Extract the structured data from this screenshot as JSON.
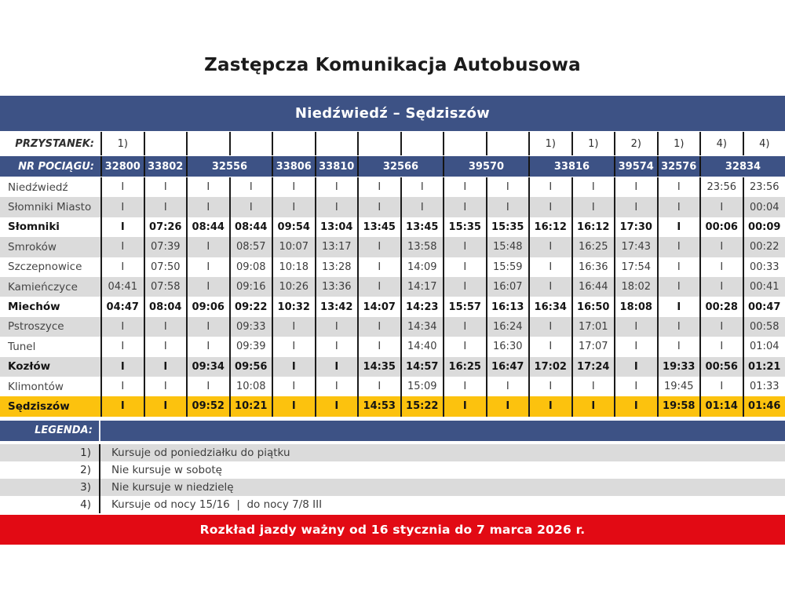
{
  "title": "Zastępcza Komunikacja Autobusowa",
  "route": "Niedźwiedź – Sędziszów",
  "colors": {
    "header_blue": "#3D5285",
    "highlight_yellow": "#FCC20E",
    "zebra_gray": "#DBDBDB",
    "footer_red": "#E20A14"
  },
  "table": {
    "stop_header_label": "PRZYSTANEK:",
    "train_header_label": "NR POCIĄGU:",
    "column_annotations": [
      "1)",
      "",
      "",
      "",
      "",
      "",
      "",
      "",
      "",
      "",
      "1)",
      "1)",
      "2)",
      "1)",
      "4)",
      "4)"
    ],
    "trains": [
      {
        "number": "32800",
        "span": 1
      },
      {
        "number": "33802",
        "span": 1
      },
      {
        "number": "32556",
        "span": 2
      },
      {
        "number": "33806",
        "span": 1
      },
      {
        "number": "33810",
        "span": 1
      },
      {
        "number": "32566",
        "span": 2
      },
      {
        "number": "39570",
        "span": 2
      },
      {
        "number": "33816",
        "span": 2
      },
      {
        "number": "39574",
        "span": 1
      },
      {
        "number": "32576",
        "span": 1
      },
      {
        "number": "32834",
        "span": 2
      }
    ],
    "rows": [
      {
        "station": "Niedźwiedź",
        "bold": false,
        "highlight": false,
        "times": [
          "I",
          "I",
          "I",
          "I",
          "I",
          "I",
          "I",
          "I",
          "I",
          "I",
          "I",
          "I",
          "I",
          "I",
          "23:56",
          "23:56"
        ]
      },
      {
        "station": "Słomniki Miasto",
        "bold": false,
        "highlight": false,
        "times": [
          "I",
          "I",
          "I",
          "I",
          "I",
          "I",
          "I",
          "I",
          "I",
          "I",
          "I",
          "I",
          "I",
          "I",
          "I",
          "00:04"
        ]
      },
      {
        "station": "Słomniki",
        "bold": true,
        "highlight": false,
        "times": [
          "I",
          "07:26",
          "08:44",
          "08:44",
          "09:54",
          "13:04",
          "13:45",
          "13:45",
          "15:35",
          "15:35",
          "16:12",
          "16:12",
          "17:30",
          "I",
          "00:06",
          "00:09"
        ]
      },
      {
        "station": "Smroków",
        "bold": false,
        "highlight": false,
        "times": [
          "I",
          "07:39",
          "I",
          "08:57",
          "10:07",
          "13:17",
          "I",
          "13:58",
          "I",
          "15:48",
          "I",
          "16:25",
          "17:43",
          "I",
          "I",
          "00:22"
        ]
      },
      {
        "station": "Szczepnowice",
        "bold": false,
        "highlight": false,
        "times": [
          "I",
          "07:50",
          "I",
          "09:08",
          "10:18",
          "13:28",
          "I",
          "14:09",
          "I",
          "15:59",
          "I",
          "16:36",
          "17:54",
          "I",
          "I",
          "00:33"
        ]
      },
      {
        "station": "Kamieńczyce",
        "bold": false,
        "highlight": false,
        "times": [
          "04:41",
          "07:58",
          "I",
          "09:16",
          "10:26",
          "13:36",
          "I",
          "14:17",
          "I",
          "16:07",
          "I",
          "16:44",
          "18:02",
          "I",
          "I",
          "00:41"
        ]
      },
      {
        "station": "Miechów",
        "bold": true,
        "highlight": false,
        "times": [
          "04:47",
          "08:04",
          "09:06",
          "09:22",
          "10:32",
          "13:42",
          "14:07",
          "14:23",
          "15:57",
          "16:13",
          "16:34",
          "16:50",
          "18:08",
          "I",
          "00:28",
          "00:47"
        ]
      },
      {
        "station": "Pstroszyce",
        "bold": false,
        "highlight": false,
        "times": [
          "I",
          "I",
          "I",
          "09:33",
          "I",
          "I",
          "I",
          "14:34",
          "I",
          "16:24",
          "I",
          "17:01",
          "I",
          "I",
          "I",
          "00:58"
        ]
      },
      {
        "station": "Tunel",
        "bold": false,
        "highlight": false,
        "times": [
          "I",
          "I",
          "I",
          "09:39",
          "I",
          "I",
          "I",
          "14:40",
          "I",
          "16:30",
          "I",
          "17:07",
          "I",
          "I",
          "I",
          "01:04"
        ]
      },
      {
        "station": "Kozłów",
        "bold": true,
        "highlight": false,
        "times": [
          "I",
          "I",
          "09:34",
          "09:56",
          "I",
          "I",
          "14:35",
          "14:57",
          "16:25",
          "16:47",
          "17:02",
          "17:24",
          "I",
          "19:33",
          "00:56",
          "01:21"
        ]
      },
      {
        "station": "Klimontów",
        "bold": false,
        "highlight": false,
        "times": [
          "I",
          "I",
          "I",
          "10:08",
          "I",
          "I",
          "I",
          "15:09",
          "I",
          "I",
          "I",
          "I",
          "I",
          "19:45",
          "I",
          "01:33"
        ]
      },
      {
        "station": "Sędziszów",
        "bold": true,
        "highlight": true,
        "times": [
          "I",
          "I",
          "09:52",
          "10:21",
          "I",
          "I",
          "14:53",
          "15:22",
          "I",
          "I",
          "I",
          "I",
          "I",
          "19:58",
          "01:14",
          "01:46"
        ]
      }
    ]
  },
  "legend": {
    "label": "LEGENDA:",
    "items": [
      {
        "num": "1)",
        "text": "Kursuje od poniedziałku do piątku"
      },
      {
        "num": "2)",
        "text": "Nie kursuje w sobotę"
      },
      {
        "num": "3)",
        "text": "Nie kursuje w niedzielę"
      },
      {
        "num": "4)",
        "text": "Kursuje od nocy 15/16  |  do nocy 7/8 III"
      }
    ]
  },
  "footer": "Rozkład jazdy ważny od 16 stycznia do 7 marca 2026 r."
}
